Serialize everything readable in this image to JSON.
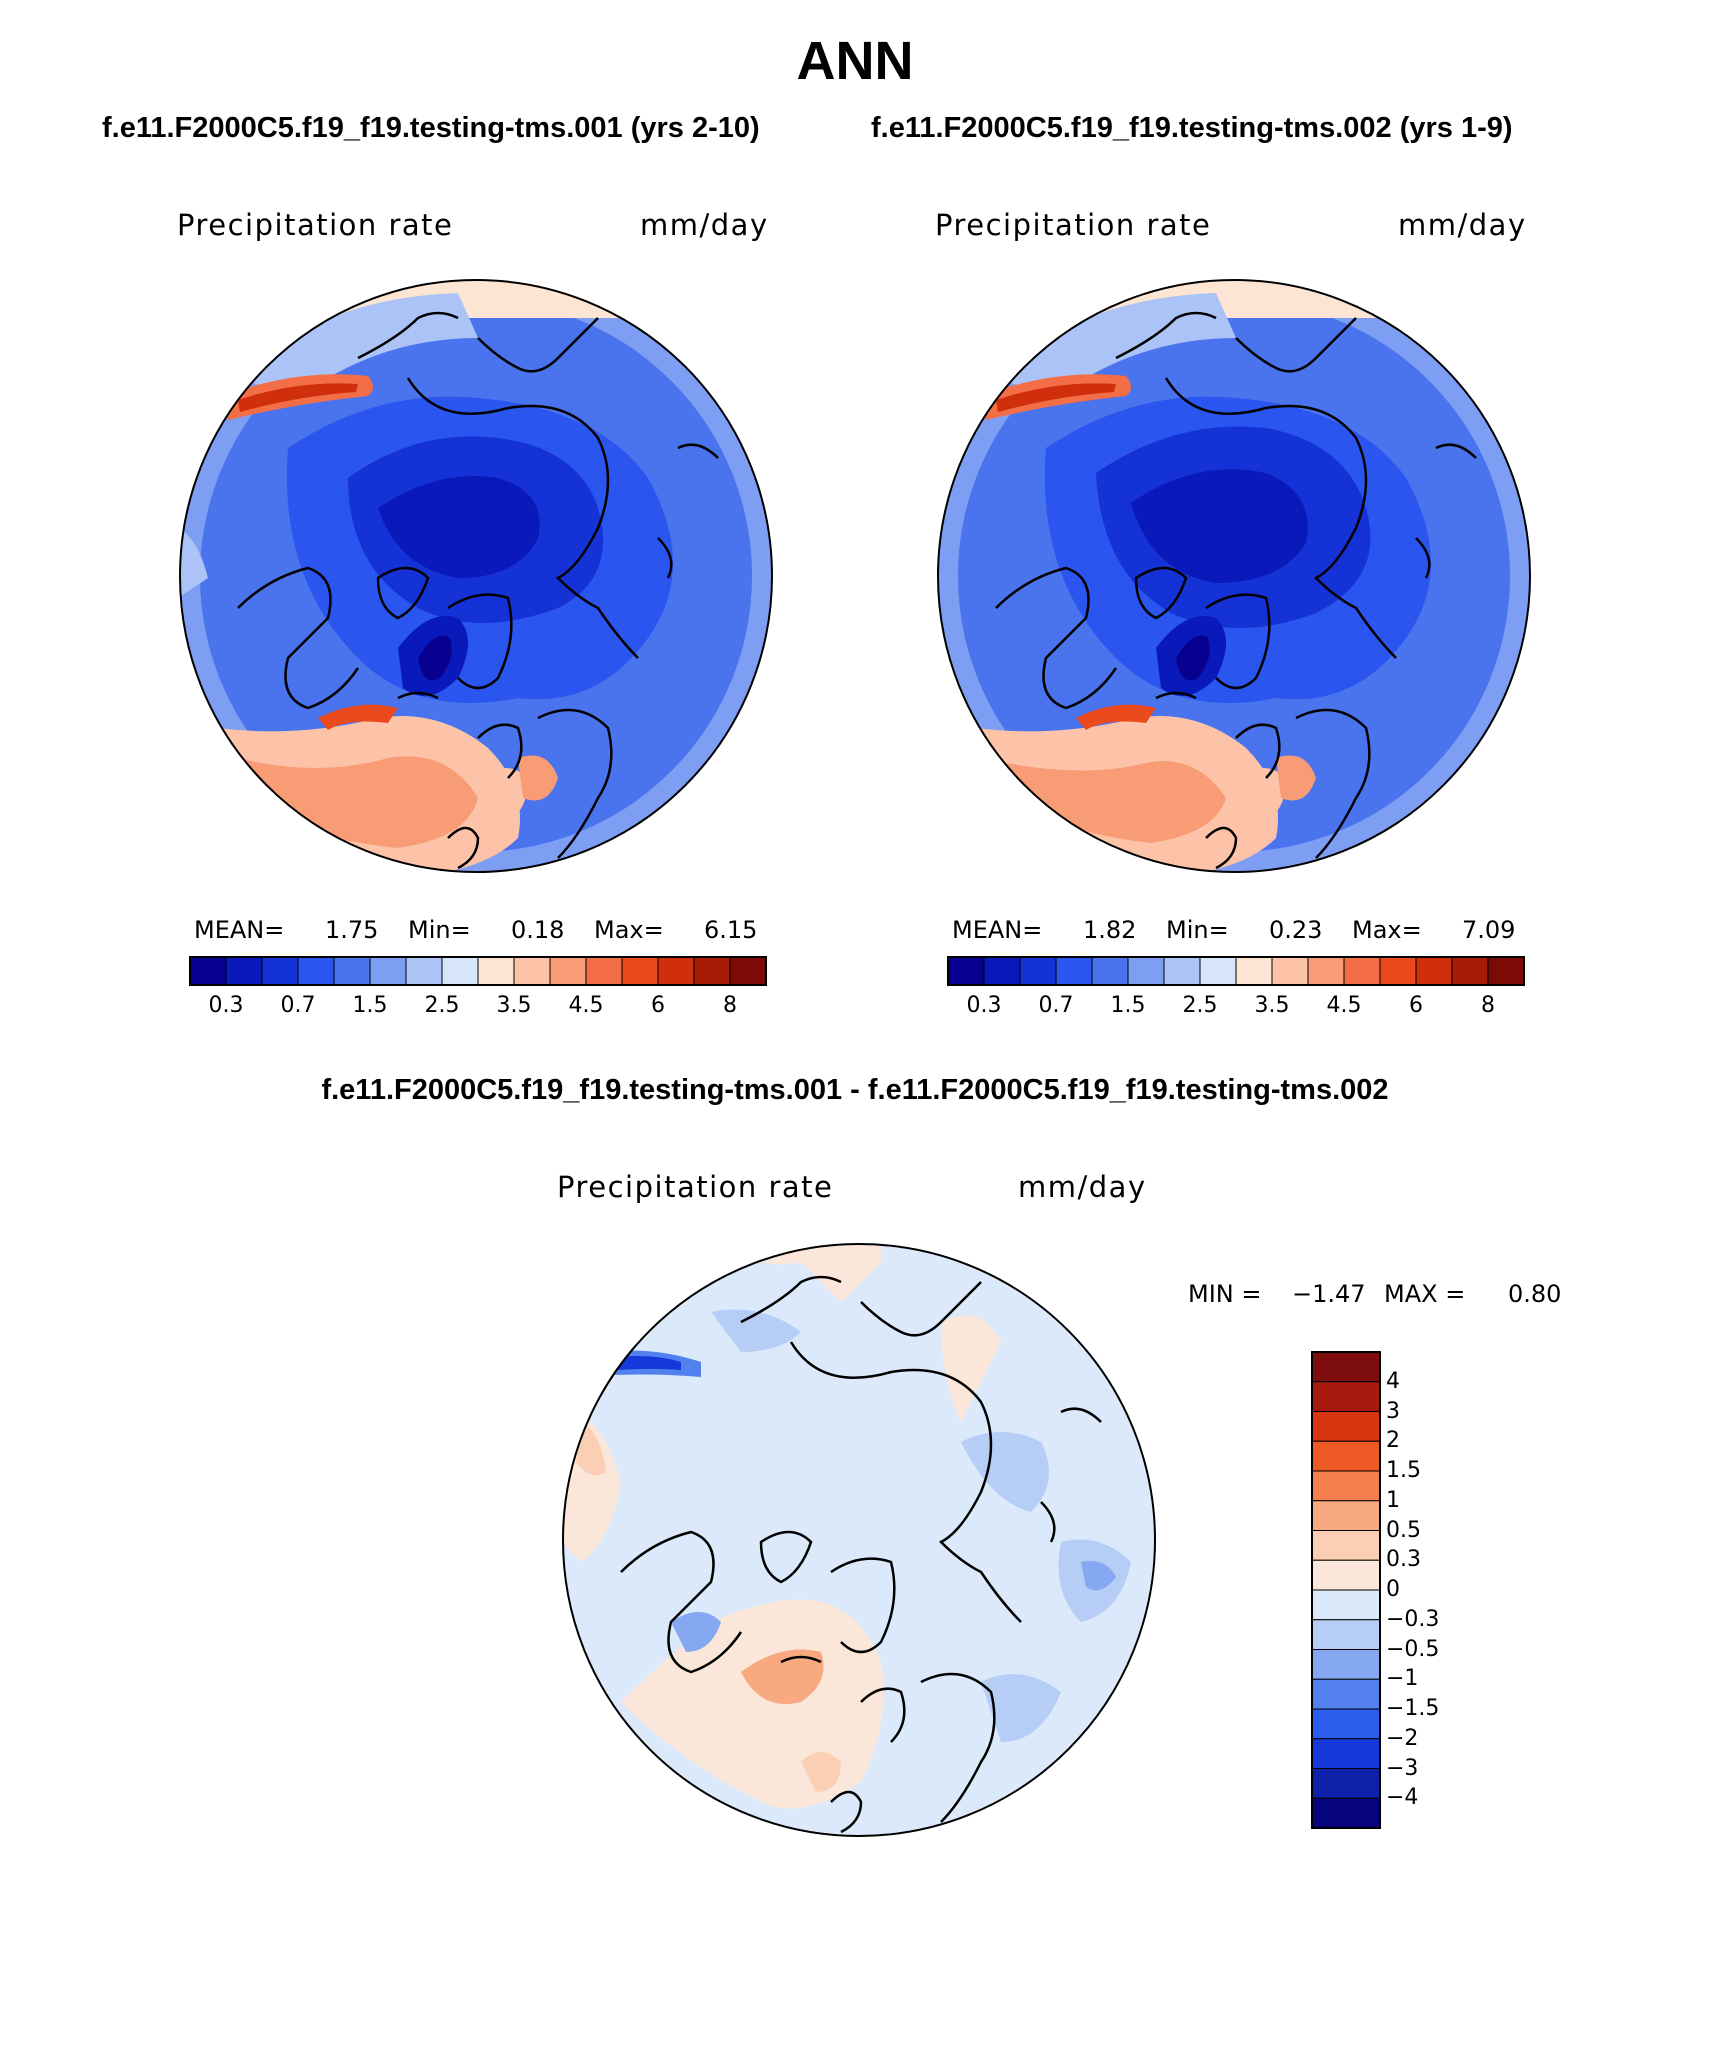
{
  "page": {
    "title": "ANN",
    "case1_title": "f.e11.F2000C5.f19_f19.testing-tms.001 (yrs 2-10)",
    "case2_title": "f.e11.F2000C5.f19_f19.testing-tms.002 (yrs 1-9)",
    "diff_title": "f.e11.F2000C5.f19_f19.testing-tms.001 - f.e11.F2000C5.f19_f19.testing-tms.002"
  },
  "panels": [
    {
      "variable": "Precipitation rate",
      "units": "mm/day",
      "mean_label": "MEAN=",
      "mean": "1.75",
      "min_label": "Min=",
      "min": "0.18",
      "max_label": "Max=",
      "max": "6.15"
    },
    {
      "variable": "Precipitation rate",
      "units": "mm/day",
      "mean_label": "MEAN=",
      "mean": "1.82",
      "min_label": "Min=",
      "min": "0.23",
      "max_label": "Max=",
      "max": "7.09"
    }
  ],
  "diff_panel": {
    "variable": "Precipitation rate",
    "units": "mm/day",
    "min_label": "MIN =",
    "min": "−1.47",
    "max_label": "MAX =",
    "max": "0.80"
  },
  "colorbar_horizontal": {
    "colors": [
      "#08008f",
      "#0a19b9",
      "#1432d6",
      "#2a55ee",
      "#4a73ee",
      "#7d9ef3",
      "#acc3f8",
      "#d8e6fb",
      "#fde5d4",
      "#fcc3a8",
      "#f89c76",
      "#f36e47",
      "#eb4a1d",
      "#cf2f0c",
      "#a61c07",
      "#7d0b05"
    ],
    "tick_labels": [
      "0.3",
      "0.7",
      "1.5",
      "2.5",
      "3.5",
      "4.5",
      "6",
      "8"
    ]
  },
  "colorbar_vertical": {
    "colors": [
      "#7e0d0d",
      "#a91a0e",
      "#d83510",
      "#ee5a25",
      "#f5804e",
      "#f8a97f",
      "#fbcfb4",
      "#fbe7d9",
      "#dbe9fb",
      "#b6cdf6",
      "#86a8f2",
      "#5280ee",
      "#2d5ded",
      "#1438d9",
      "#0d22a8",
      "#07057d"
    ],
    "tick_labels": [
      "4",
      "3",
      "2",
      "1.5",
      "1",
      "0.5",
      "0.3",
      "0",
      "−0.3",
      "−0.5",
      "−1",
      "−1.5",
      "−2",
      "−3",
      "−4"
    ]
  }
}
